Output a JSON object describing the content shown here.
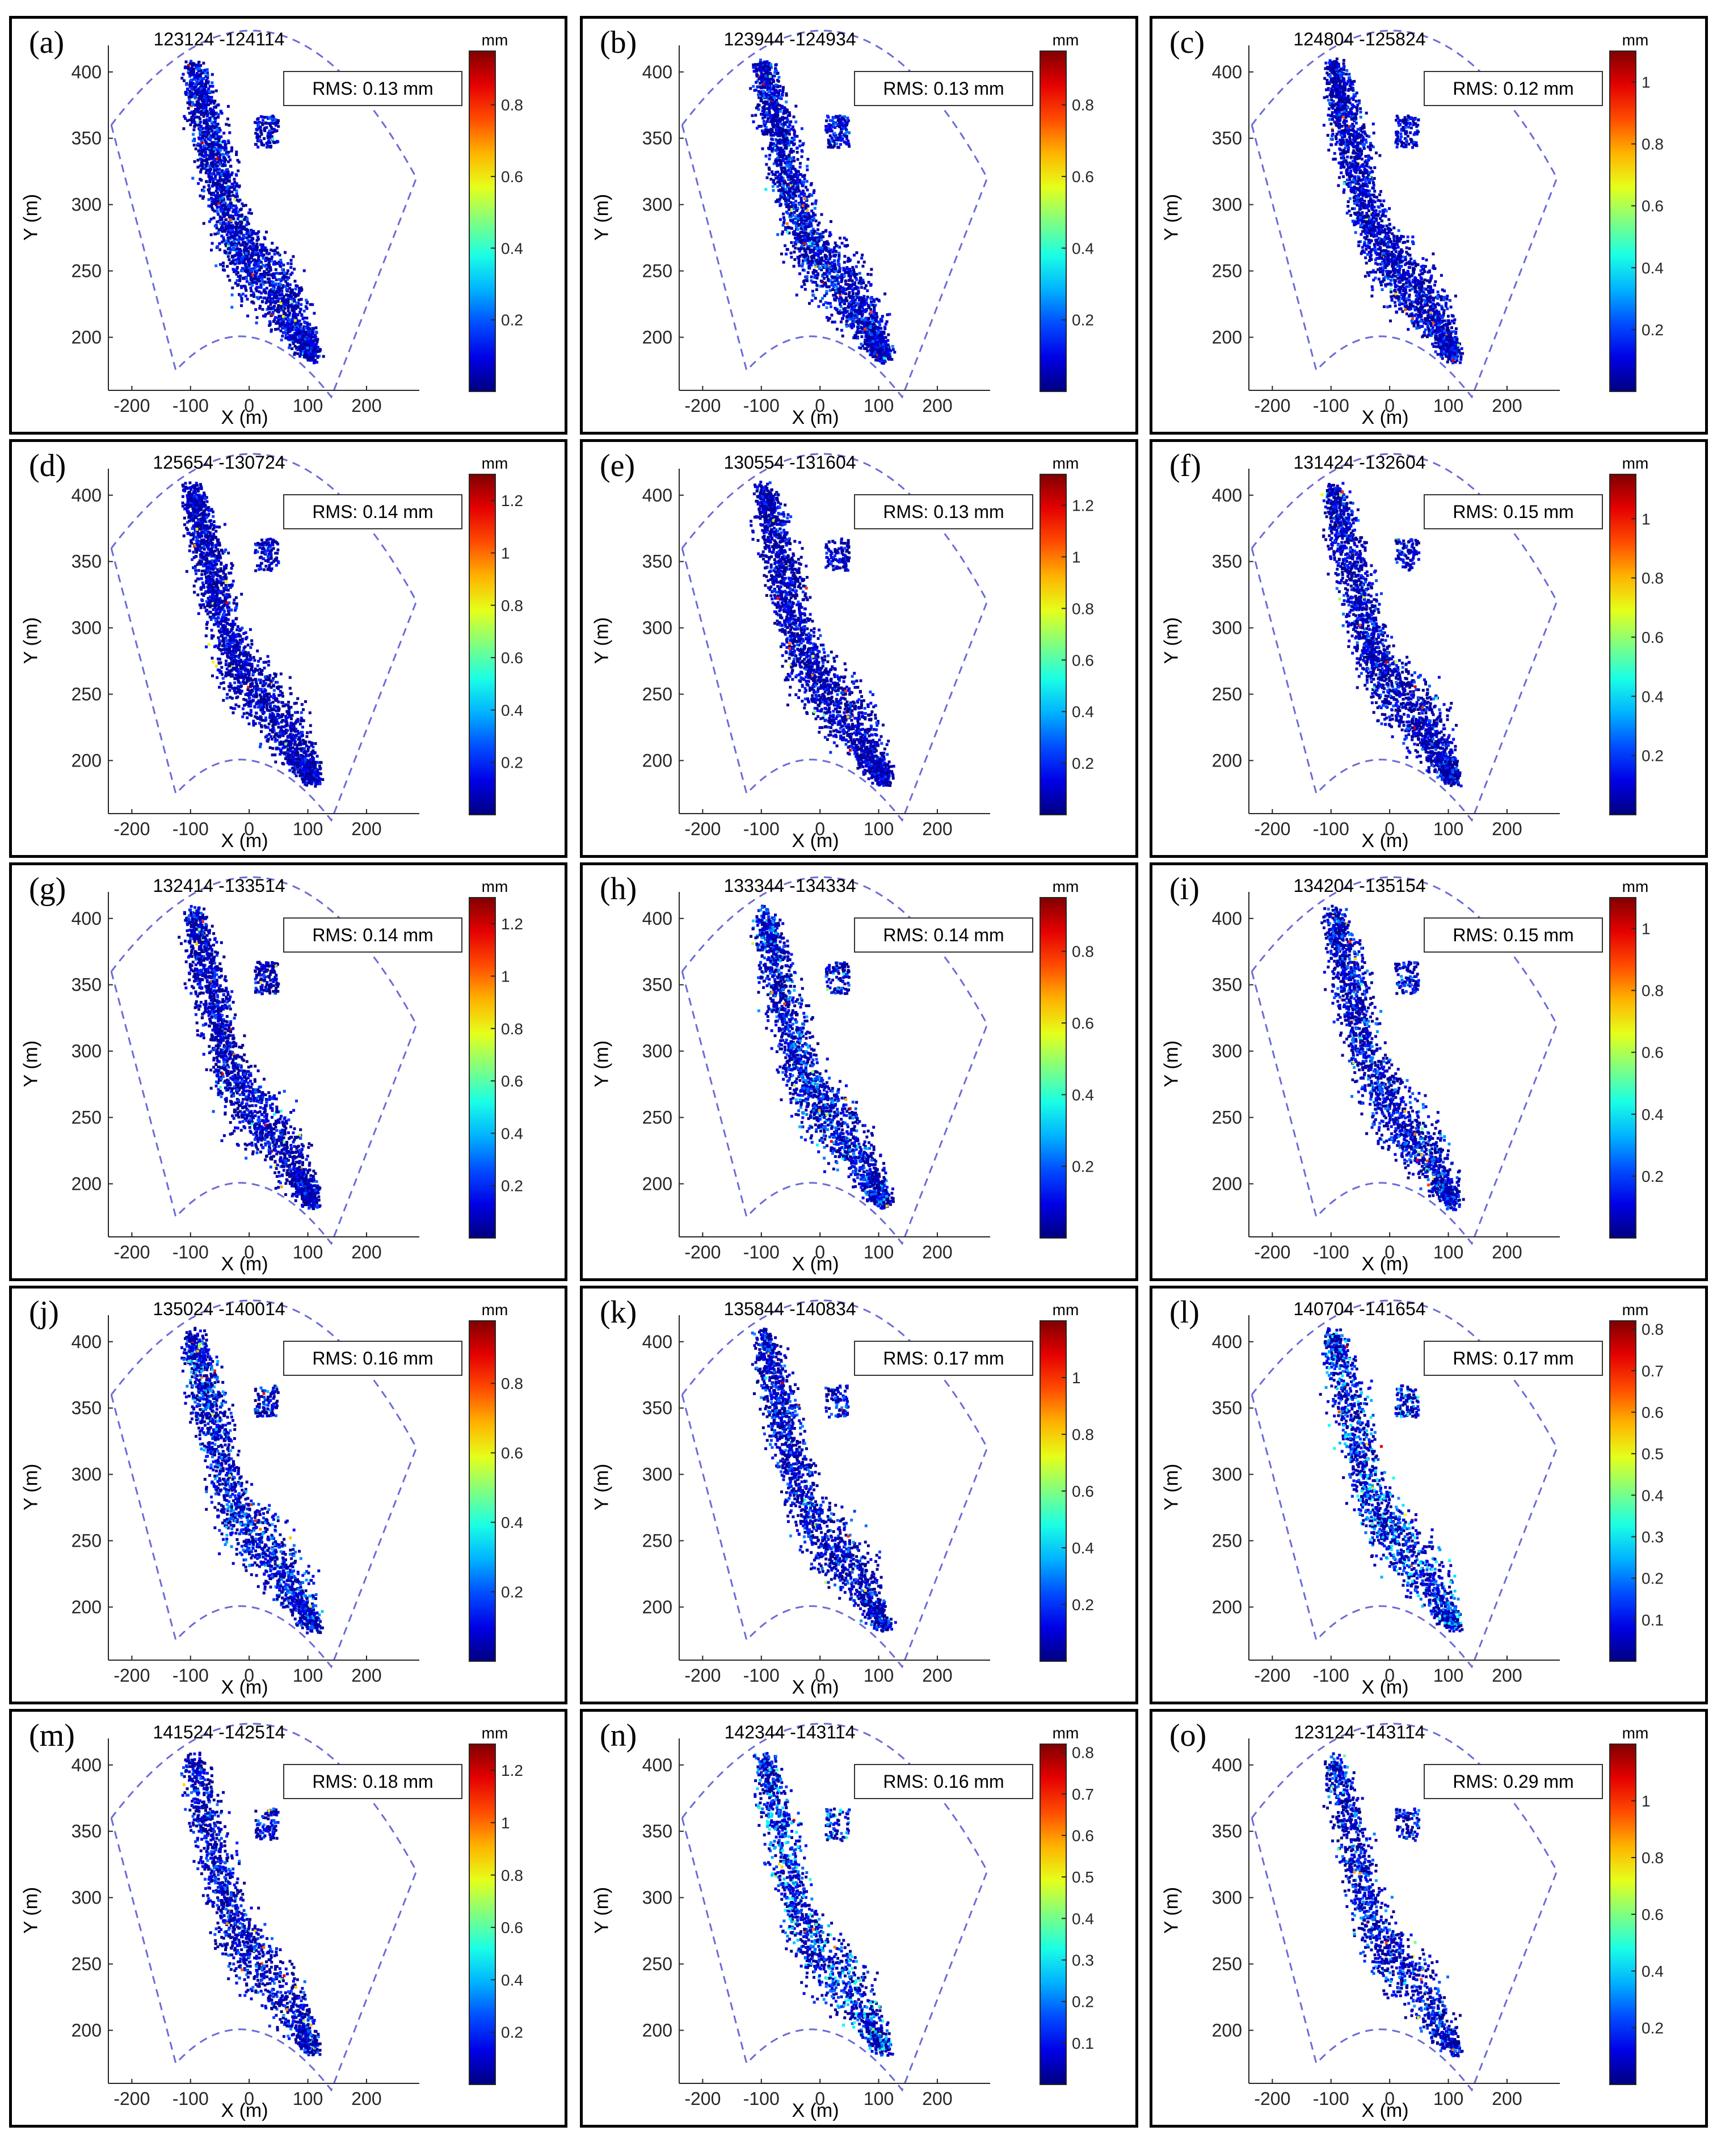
{
  "chart_data": [
    {
      "letter": "(a)",
      "title": "123124 -124114",
      "rms": "RMS: 0.13 mm",
      "cbar_max": 0.95,
      "cbar_ticks": [
        0.2,
        0.4,
        0.6,
        0.8
      ]
    },
    {
      "letter": "(b)",
      "title": "123944 -124934",
      "rms": "RMS: 0.13 mm",
      "cbar_max": 0.95,
      "cbar_ticks": [
        0.2,
        0.4,
        0.6,
        0.8
      ]
    },
    {
      "letter": "(c)",
      "title": "124804 -125824",
      "rms": "RMS: 0.12 mm",
      "cbar_max": 1.1,
      "cbar_ticks": [
        0.2,
        0.4,
        0.6,
        0.8,
        1
      ]
    },
    {
      "letter": "(d)",
      "title": "125654 -130724",
      "rms": "RMS: 0.14 mm",
      "cbar_max": 1.3,
      "cbar_ticks": [
        0.2,
        0.4,
        0.6,
        0.8,
        1,
        1.2
      ]
    },
    {
      "letter": "(e)",
      "title": "130554 -131604",
      "rms": "RMS: 0.13 mm",
      "cbar_max": 1.32,
      "cbar_ticks": [
        0.2,
        0.4,
        0.6,
        0.8,
        1,
        1.2
      ]
    },
    {
      "letter": "(f)",
      "title": "131424 -132604",
      "rms": "RMS: 0.15 mm",
      "cbar_max": 1.15,
      "cbar_ticks": [
        0.2,
        0.4,
        0.6,
        0.8,
        1
      ]
    },
    {
      "letter": "(g)",
      "title": "132414 -133514",
      "rms": "RMS: 0.14 mm",
      "cbar_max": 1.3,
      "cbar_ticks": [
        0.2,
        0.4,
        0.6,
        0.8,
        1,
        1.2
      ]
    },
    {
      "letter": "(h)",
      "title": "133344 -134334",
      "rms": "RMS: 0.14 mm",
      "cbar_max": 0.95,
      "cbar_ticks": [
        0.2,
        0.4,
        0.6,
        0.8
      ]
    },
    {
      "letter": "(i)",
      "title": "134204 -135154",
      "rms": "RMS: 0.15 mm",
      "cbar_max": 1.1,
      "cbar_ticks": [
        0.2,
        0.4,
        0.6,
        0.8,
        1
      ]
    },
    {
      "letter": "(j)",
      "title": "135024 -140014",
      "rms": "RMS: 0.16 mm",
      "cbar_max": 0.98,
      "cbar_ticks": [
        0.2,
        0.4,
        0.6,
        0.8
      ]
    },
    {
      "letter": "(k)",
      "title": "135844 -140834",
      "rms": "RMS: 0.17 mm",
      "cbar_max": 1.2,
      "cbar_ticks": [
        0.2,
        0.4,
        0.6,
        0.8,
        1
      ]
    },
    {
      "letter": "(l)",
      "title": "140704 -141654",
      "rms": "RMS: 0.17 mm",
      "cbar_max": 0.82,
      "cbar_ticks": [
        0.1,
        0.2,
        0.3,
        0.4,
        0.5,
        0.6,
        0.7,
        0.8
      ]
    },
    {
      "letter": "(m)",
      "title": "141524 -142514",
      "rms": "RMS: 0.18 mm",
      "cbar_max": 1.3,
      "cbar_ticks": [
        0.2,
        0.4,
        0.6,
        0.8,
        1,
        1.2
      ]
    },
    {
      "letter": "(n)",
      "title": "142344 -143114",
      "rms": "RMS: 0.16 mm",
      "cbar_max": 0.82,
      "cbar_ticks": [
        0.1,
        0.2,
        0.3,
        0.4,
        0.5,
        0.6,
        0.7,
        0.8
      ]
    },
    {
      "letter": "(o)",
      "title": "123124 -143114",
      "rms": "RMS: 0.29 mm",
      "cbar_max": 1.2,
      "cbar_ticks": [
        0.2,
        0.4,
        0.6,
        0.8,
        1
      ]
    }
  ],
  "common": {
    "type": "scatter",
    "xlabel": "X (m)",
    "ylabel": "Y (m)",
    "colorbar_label": "mm",
    "x_ticks": [
      -200,
      -100,
      0,
      100,
      200
    ],
    "y_ticks": [
      200,
      250,
      300,
      350,
      400
    ],
    "xlim": [
      -240,
      290
    ],
    "ylim": [
      160,
      420
    ],
    "colormap": "jet"
  }
}
